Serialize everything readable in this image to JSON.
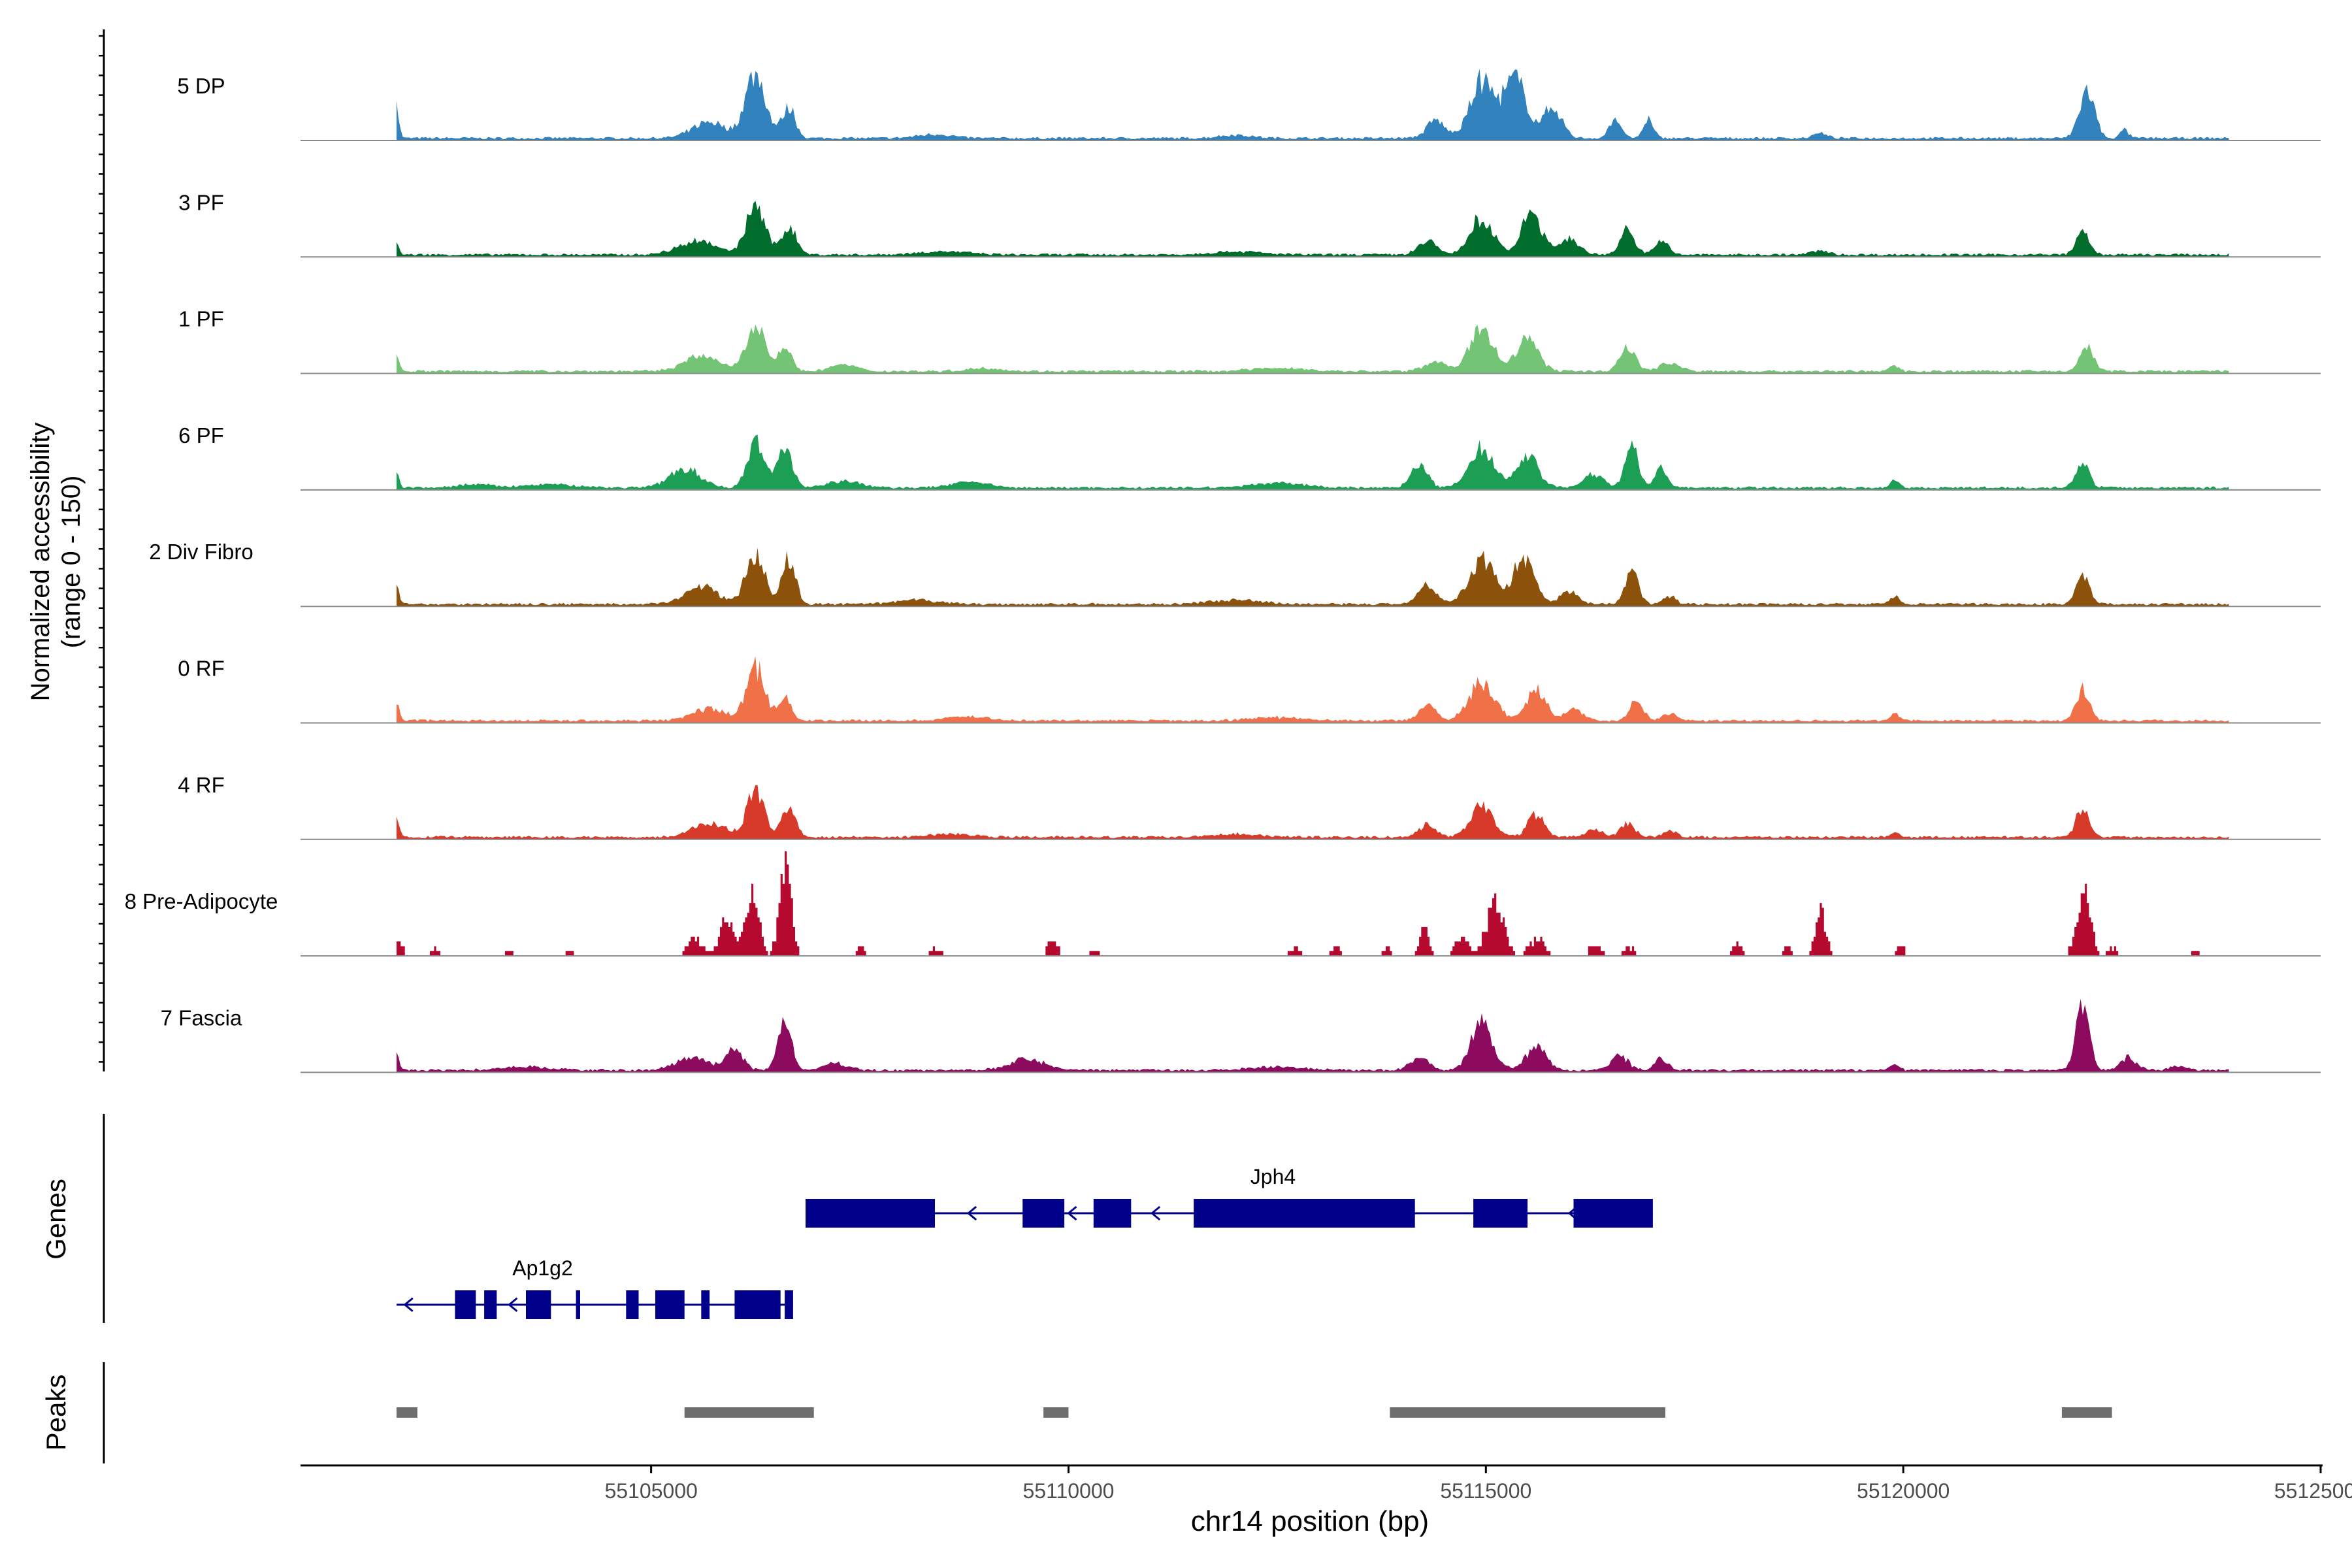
{
  "chart_data": {
    "type": "area",
    "title": "",
    "ylabel_line1": "Normalized accessibility",
    "ylabel_line2": "(range 0 - 150)",
    "ylim": [
      0,
      150
    ],
    "genes_label": "Genes",
    "peaks_label": "Peaks",
    "xlabel": "chr14 position (bp)",
    "xlim": [
      55100800,
      55125000
    ],
    "xticks": [
      55105000,
      55110000,
      55115000,
      55120000,
      55125000
    ],
    "xtick_labels": [
      "55105000",
      "55110000",
      "55115000",
      "55120000",
      "55125000"
    ],
    "tracks": [
      {
        "name": "5 DP",
        "color": "#3182bd",
        "scale": 1.0,
        "sparse": false,
        "peaks": [
          [
            55101950,
            40,
            30
          ],
          [
            55106250,
            80,
            120
          ],
          [
            55106650,
            38,
            80
          ],
          [
            55105700,
            20,
            200
          ],
          [
            55114400,
            22,
            110
          ],
          [
            55114950,
            70,
            140
          ],
          [
            55115350,
            72,
            140
          ],
          [
            55115800,
            38,
            110
          ],
          [
            55116550,
            25,
            70
          ],
          [
            55116950,
            22,
            60
          ],
          [
            55122200,
            58,
            90
          ],
          [
            55122650,
            10,
            50
          ],
          [
            55119000,
            6,
            80
          ],
          [
            55108400,
            5,
            200
          ],
          [
            55112000,
            4,
            200
          ]
        ]
      },
      {
        "name": "3 PF",
        "color": "#006d2c",
        "scale": 1.0,
        "sparse": false,
        "peaks": [
          [
            55101950,
            15,
            30
          ],
          [
            55106250,
            62,
            110
          ],
          [
            55106650,
            35,
            90
          ],
          [
            55105550,
            18,
            220
          ],
          [
            55108500,
            4,
            300
          ],
          [
            55114300,
            18,
            110
          ],
          [
            55114950,
            45,
            140
          ],
          [
            55115550,
            52,
            120
          ],
          [
            55116000,
            22,
            110
          ],
          [
            55116700,
            30,
            90
          ],
          [
            55117100,
            18,
            80
          ],
          [
            55122150,
            28,
            80
          ],
          [
            55119000,
            5,
            100
          ],
          [
            55112000,
            4,
            300
          ]
        ]
      },
      {
        "name": "1 PF",
        "color": "#74c476",
        "scale": 1.0,
        "sparse": false,
        "peaks": [
          [
            55101950,
            20,
            30
          ],
          [
            55106250,
            64,
            110
          ],
          [
            55106600,
            30,
            80
          ],
          [
            55105600,
            20,
            200
          ],
          [
            55107300,
            8,
            150
          ],
          [
            55114400,
            12,
            130
          ],
          [
            55114950,
            52,
            140
          ],
          [
            55115500,
            40,
            130
          ],
          [
            55116700,
            32,
            90
          ],
          [
            55117200,
            10,
            120
          ],
          [
            55119900,
            8,
            50
          ],
          [
            55122200,
            32,
            80
          ],
          [
            55112500,
            4,
            300
          ],
          [
            55109000,
            4,
            200
          ]
        ]
      },
      {
        "name": "6 PF",
        "color": "#1c9e55",
        "scale": 1.0,
        "sparse": false,
        "peaks": [
          [
            55101950,
            20,
            30
          ],
          [
            55106250,
            56,
            100
          ],
          [
            55106600,
            50,
            90
          ],
          [
            55105400,
            25,
            180
          ],
          [
            55107300,
            8,
            200
          ],
          [
            55108800,
            8,
            200
          ],
          [
            55114200,
            28,
            100
          ],
          [
            55114950,
            48,
            150
          ],
          [
            55115500,
            40,
            130
          ],
          [
            55116300,
            18,
            110
          ],
          [
            55116750,
            50,
            80
          ],
          [
            55117100,
            25,
            70
          ],
          [
            55119900,
            10,
            50
          ],
          [
            55122150,
            30,
            80
          ],
          [
            55112500,
            6,
            300
          ],
          [
            55102900,
            4,
            200
          ],
          [
            55103800,
            4,
            300
          ]
        ]
      },
      {
        "name": "2 Div Fibro",
        "color": "#8c510a",
        "scale": 1.0,
        "sparse": false,
        "peaks": [
          [
            55101950,
            25,
            30
          ],
          [
            55106250,
            65,
            110
          ],
          [
            55106650,
            55,
            80
          ],
          [
            55105600,
            22,
            200
          ],
          [
            55114300,
            25,
            110
          ],
          [
            55114950,
            55,
            150
          ],
          [
            55115450,
            55,
            130
          ],
          [
            55116000,
            18,
            100
          ],
          [
            55116750,
            40,
            80
          ],
          [
            55117200,
            10,
            80
          ],
          [
            55119900,
            10,
            60
          ],
          [
            55122150,
            35,
            80
          ],
          [
            55108200,
            5,
            250
          ],
          [
            55112000,
            5,
            300
          ]
        ]
      },
      {
        "name": "0 RF",
        "color": "#f07048",
        "scale": 1.0,
        "sparse": false,
        "peaks": [
          [
            55101950,
            25,
            30
          ],
          [
            55106250,
            65,
            110
          ],
          [
            55106600,
            28,
            80
          ],
          [
            55105700,
            15,
            200
          ],
          [
            55114300,
            18,
            100
          ],
          [
            55114950,
            48,
            150
          ],
          [
            55115600,
            38,
            120
          ],
          [
            55116050,
            15,
            100
          ],
          [
            55116800,
            25,
            80
          ],
          [
            55117200,
            10,
            80
          ],
          [
            55119900,
            8,
            50
          ],
          [
            55122150,
            38,
            80
          ],
          [
            55108800,
            5,
            250
          ],
          [
            55112500,
            4,
            300
          ]
        ]
      },
      {
        "name": "4 RF",
        "color": "#d83a2a",
        "scale": 1.0,
        "sparse": false,
        "peaks": [
          [
            55101950,
            25,
            30
          ],
          [
            55106250,
            60,
            100
          ],
          [
            55106650,
            42,
            80
          ],
          [
            55105700,
            18,
            200
          ],
          [
            55114300,
            15,
            100
          ],
          [
            55114950,
            38,
            130
          ],
          [
            55115600,
            28,
            100
          ],
          [
            55116300,
            10,
            100
          ],
          [
            55116700,
            18,
            80
          ],
          [
            55117200,
            8,
            80
          ],
          [
            55119900,
            6,
            50
          ],
          [
            55122150,
            38,
            80
          ],
          [
            55108600,
            4,
            250
          ],
          [
            55112000,
            4,
            300
          ]
        ]
      },
      {
        "name": "8 Pre-Adipocyte",
        "color": "#b5092f",
        "scale": 1.0,
        "sparse": true,
        "peaks": [
          [
            55101950,
            18,
            60
          ],
          [
            55102400,
            10,
            60
          ],
          [
            55103300,
            8,
            60
          ],
          [
            55105500,
            25,
            90
          ],
          [
            55106200,
            80,
            80
          ],
          [
            55106600,
            130,
            70
          ],
          [
            55105900,
            45,
            90
          ],
          [
            55107500,
            10,
            60
          ],
          [
            55108400,
            10,
            60
          ],
          [
            55109800,
            20,
            60
          ],
          [
            55110300,
            8,
            50
          ],
          [
            55112700,
            10,
            60
          ],
          [
            55113200,
            12,
            60
          ],
          [
            55113800,
            10,
            60
          ],
          [
            55114250,
            32,
            60
          ],
          [
            55114700,
            25,
            80
          ],
          [
            55115100,
            70,
            100
          ],
          [
            55115600,
            20,
            100
          ],
          [
            55116300,
            12,
            80
          ],
          [
            55116700,
            12,
            60
          ],
          [
            55118000,
            14,
            60
          ],
          [
            55118600,
            12,
            60
          ],
          [
            55119000,
            55,
            60
          ],
          [
            55119950,
            12,
            50
          ],
          [
            55122150,
            85,
            80
          ],
          [
            55122500,
            10,
            60
          ],
          [
            55123500,
            8,
            60
          ],
          [
            55104000,
            6,
            80
          ]
        ]
      },
      {
        "name": "7 Fascia",
        "color": "#8c0b5e",
        "scale": 1.0,
        "sparse": false,
        "peaks": [
          [
            55101950,
            25,
            30
          ],
          [
            55106000,
            25,
            100
          ],
          [
            55106600,
            60,
            80
          ],
          [
            55105500,
            15,
            200
          ],
          [
            55107200,
            8,
            150
          ],
          [
            55109500,
            15,
            200
          ],
          [
            55114200,
            15,
            110
          ],
          [
            55114950,
            58,
            130
          ],
          [
            55115600,
            28,
            120
          ],
          [
            55116600,
            18,
            100
          ],
          [
            55117100,
            15,
            80
          ],
          [
            55122150,
            80,
            80
          ],
          [
            55122700,
            15,
            100
          ],
          [
            55123300,
            6,
            100
          ],
          [
            55119900,
            8,
            50
          ],
          [
            55112500,
            4,
            300
          ],
          [
            55103500,
            4,
            300
          ]
        ]
      }
    ],
    "genes": [
      {
        "name": "Jph4",
        "strand": "-",
        "row": 1,
        "label_pos": 55112450,
        "start": 55106850,
        "end": 55117000,
        "exons": [
          [
            55106850,
            55108400
          ],
          [
            55109450,
            55109950
          ],
          [
            55110300,
            55110750
          ],
          [
            55111500,
            55114150
          ],
          [
            55114850,
            55115500
          ],
          [
            55116050,
            55117000
          ]
        ],
        "arrows": [
          55108800,
          55110000,
          55111000,
          55114950,
          55116000
        ]
      },
      {
        "name": "Ap1g2",
        "strand": "-",
        "row": 2,
        "label_pos": 55103700,
        "start": 55101950,
        "end": 55106700,
        "exons": [
          [
            55102650,
            55102900
          ],
          [
            55103000,
            55103150
          ],
          [
            55103500,
            55103800
          ],
          [
            55104100,
            55104150
          ],
          [
            55104700,
            55104850
          ],
          [
            55105050,
            55105400
          ],
          [
            55105600,
            55105700
          ],
          [
            55106000,
            55106550
          ],
          [
            55106600,
            55106700
          ]
        ],
        "arrows": [
          55102050,
          55103300
        ]
      }
    ],
    "peak_regions": [
      [
        55101950,
        55102200
      ],
      [
        55105400,
        55106950
      ],
      [
        55109700,
        55110000
      ],
      [
        55113850,
        55117150
      ],
      [
        55121900,
        55122500
      ]
    ]
  }
}
